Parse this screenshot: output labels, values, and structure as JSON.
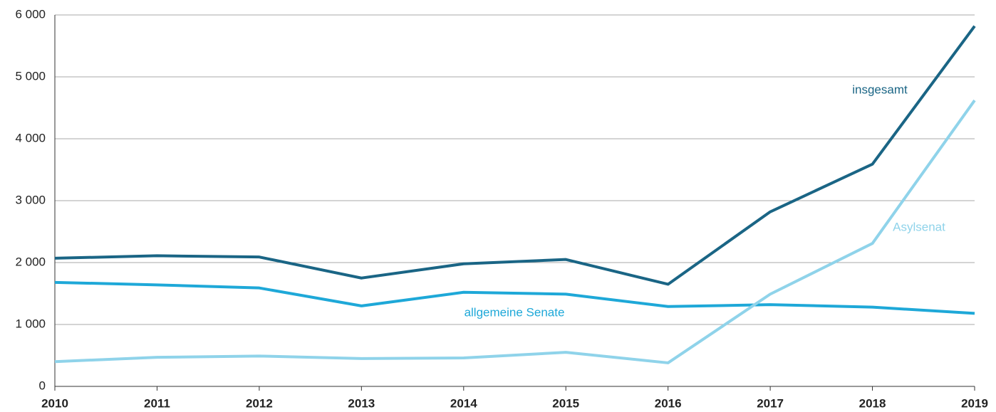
{
  "chart_data": {
    "type": "line",
    "x": [
      2010,
      2011,
      2012,
      2013,
      2014,
      2015,
      2016,
      2017,
      2018,
      2019
    ],
    "series": [
      {
        "name": "insgesamt",
        "color": "#1a6585",
        "values": [
          2070,
          2110,
          2090,
          1750,
          1980,
          2050,
          1650,
          2820,
          3590,
          5820
        ]
      },
      {
        "name": "allgemeine Senate",
        "color": "#1ea8d8",
        "values": [
          1680,
          1640,
          1590,
          1300,
          1520,
          1490,
          1290,
          1320,
          1280,
          1180
        ]
      },
      {
        "name": "Asylsenat",
        "color": "#8fd3ea",
        "values": [
          400,
          470,
          490,
          450,
          460,
          550,
          380,
          1490,
          2310,
          4620
        ]
      }
    ],
    "xlim": [
      2010,
      2019
    ],
    "ylim": [
      0,
      6000
    ],
    "yticks": [
      0,
      {
        "value": 1000,
        "label": "1 000"
      },
      {
        "value": 2000,
        "label": "2 000"
      },
      {
        "value": 3000,
        "label": "3 000"
      },
      {
        "value": 4000,
        "label": "4 000"
      },
      {
        "value": 5000,
        "label": "5 000"
      },
      {
        "value": 6000,
        "label": "6 000"
      }
    ],
    "grid": true
  }
}
